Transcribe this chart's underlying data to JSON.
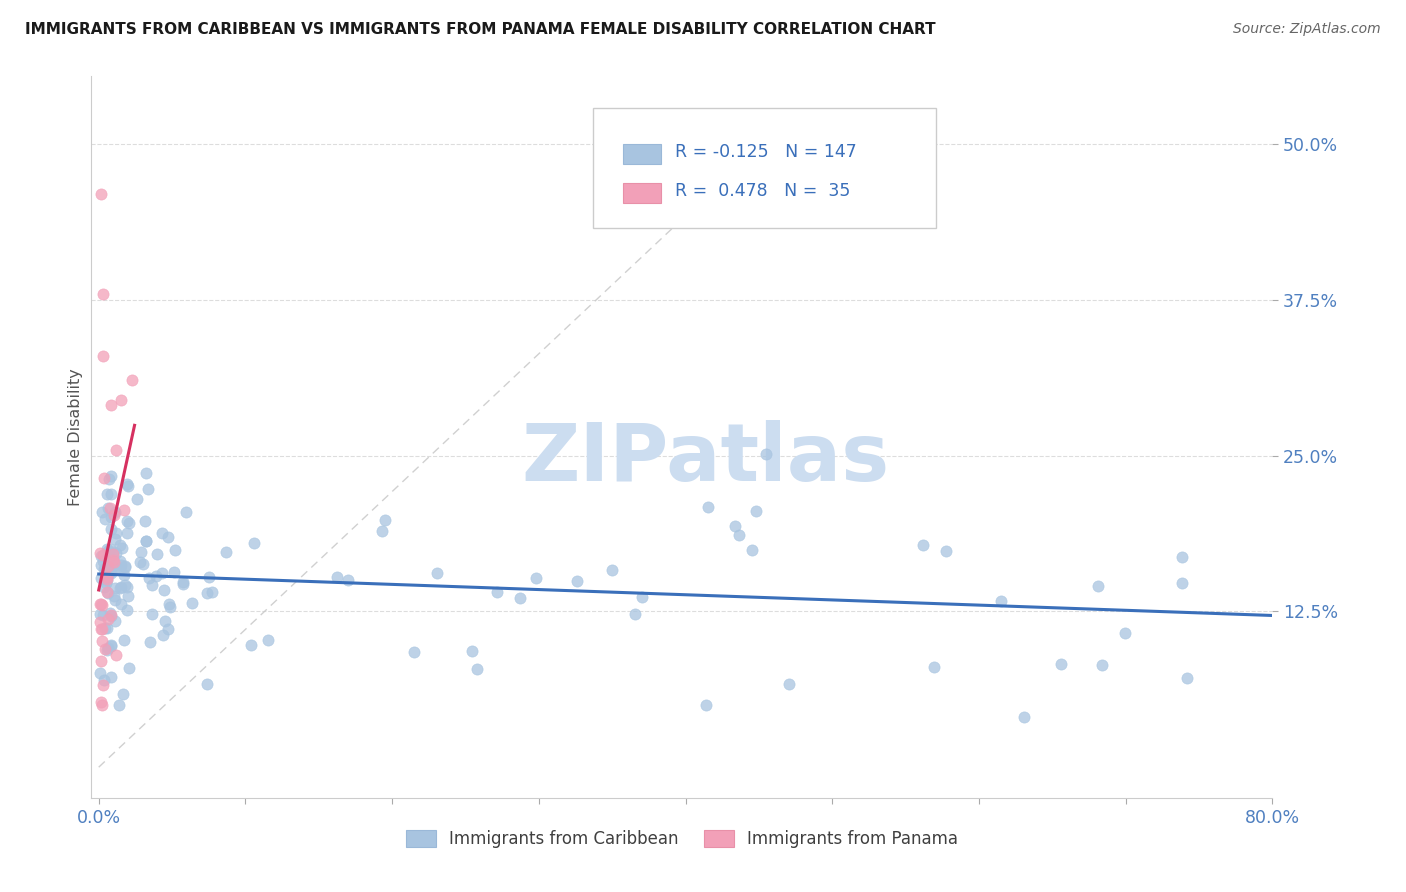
{
  "title": "IMMIGRANTS FROM CARIBBEAN VS IMMIGRANTS FROM PANAMA FEMALE DISABILITY CORRELATION CHART",
  "source": "Source: ZipAtlas.com",
  "ylabel": "Female Disability",
  "xlim": [
    -0.005,
    0.8
  ],
  "ylim": [
    -0.025,
    0.555
  ],
  "yticks": [
    0.125,
    0.25,
    0.375,
    0.5
  ],
  "yticklabels": [
    "12.5%",
    "25.0%",
    "37.5%",
    "50.0%"
  ],
  "xtick_vals": [
    0.0,
    0.1,
    0.2,
    0.3,
    0.4,
    0.5,
    0.6,
    0.7,
    0.8
  ],
  "xticklabels": [
    "0.0%",
    "",
    "",
    "",
    "",
    "",
    "",
    "",
    "80.0%"
  ],
  "R_caribbean": -0.125,
  "N_caribbean": 147,
  "R_panama": 0.478,
  "N_panama": 35,
  "color_caribbean": "#a8c4e0",
  "color_panama": "#f2a0b8",
  "trendline_caribbean_color": "#3a6fba",
  "trendline_panama_color": "#d63060",
  "tick_color": "#5080c0",
  "watermark_color": "#ccddf0",
  "legend_label_caribbean": "Immigrants from Caribbean",
  "legend_label_panama": "Immigrants from Panama",
  "background_color": "#ffffff",
  "grid_color": "#dddddd",
  "legend_text_color": "#3a6fba",
  "title_color": "#1a1a1a",
  "ylabel_color": "#555555",
  "source_color": "#666666"
}
